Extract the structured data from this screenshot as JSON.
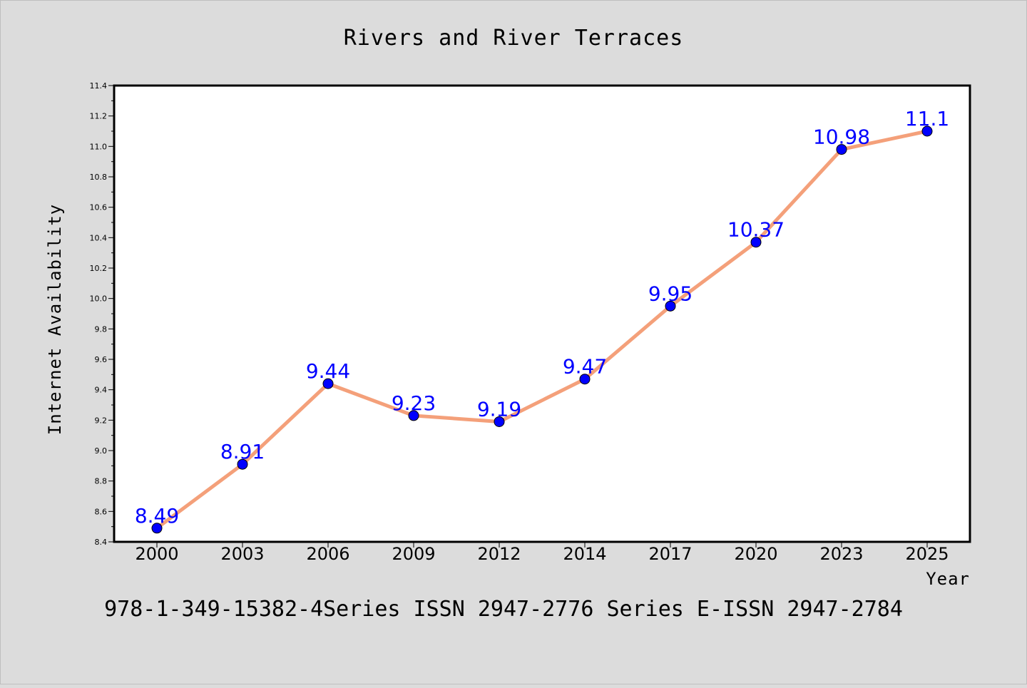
{
  "chart_data": {
    "type": "line",
    "title": "Rivers and River Terraces",
    "xlabel": "Year",
    "ylabel": "Internet Availability",
    "categories": [
      "2000",
      "2003",
      "2006",
      "2009",
      "2012",
      "2014",
      "2017",
      "2020",
      "2023",
      "2025"
    ],
    "series": [
      {
        "values": [
          8.49,
          8.91,
          9.44,
          9.23,
          9.19,
          9.47,
          9.95,
          10.37,
          10.98,
          11.1
        ],
        "line_color": "#f4a07a",
        "marker_color": "#0000ff"
      }
    ],
    "ylim": [
      8.4,
      11.4
    ],
    "yticks": [
      "8.4",
      "8.6",
      "8.8",
      "9.0",
      "9.2",
      "9.4",
      "9.6",
      "9.8",
      "10.0",
      "10.2",
      "10.4",
      "10.6",
      "10.8",
      "11.0",
      "11.2",
      "11.4"
    ],
    "data_labels": [
      "8.49",
      "8.91",
      "9.44",
      "9.23",
      "9.19",
      "9.47",
      "9.95",
      "10.37",
      "10.98",
      "11.1"
    ],
    "grid": false,
    "legend": "none"
  },
  "footer": {
    "text": "978-1-349-15382-4Series ISSN 2947-2776 Series E-ISSN 2947-2784"
  },
  "colors": {
    "background": "#dcdcdc",
    "plot_background": "#ffffff",
    "line": "#f4a07a",
    "marker": "#0000ff",
    "data_label": "#0000ff"
  }
}
